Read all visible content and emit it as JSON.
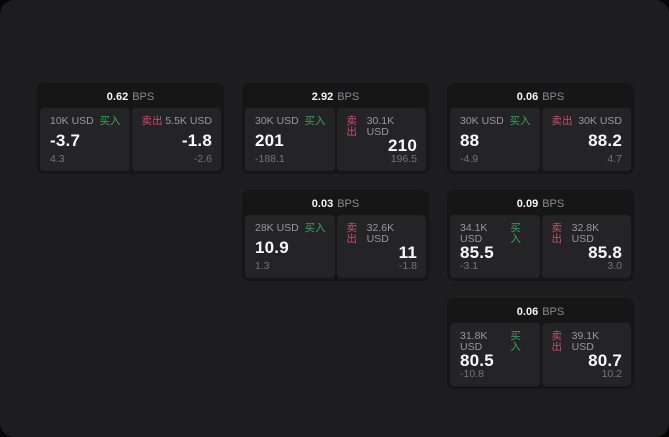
{
  "labels": {
    "bps_unit": "BPS",
    "buy": "买入",
    "sell": "卖出"
  },
  "colors": {
    "background": "#060606",
    "surface": "#1d1d1f",
    "card": "#161617",
    "panel": "#242427",
    "buy_green": "#3fa05f",
    "sell_red": "#c4506b",
    "primary_text": "#fafafa",
    "muted_text": "#98989d"
  },
  "cards": [
    {
      "bps": "0.62",
      "buy": {
        "notional": "10K USD",
        "price": "-3.7",
        "change": "4.3"
      },
      "sell": {
        "notional": "5.5K USD",
        "price": "-1.8",
        "change": "-2.6"
      }
    },
    {
      "bps": "2.92",
      "buy": {
        "notional": "30K USD",
        "price": "201",
        "change": "-188.1"
      },
      "sell": {
        "notional": "30.1K USD",
        "price": "210",
        "change": "196.5"
      }
    },
    {
      "bps": "0.06",
      "buy": {
        "notional": "30K USD",
        "price": "88",
        "change": "-4.9"
      },
      "sell": {
        "notional": "30K USD",
        "price": "88.2",
        "change": "4.7"
      }
    },
    {
      "bps": "0.03",
      "buy": {
        "notional": "28K USD",
        "price": "10.9",
        "change": "1.3"
      },
      "sell": {
        "notional": "32.6K USD",
        "price": "11",
        "change": "-1.8"
      }
    },
    {
      "bps": "0.09",
      "buy": {
        "notional": "34.1K USD",
        "price": "85.5",
        "change": "-3.1"
      },
      "sell": {
        "notional": "32.8K USD",
        "price": "85.8",
        "change": "3.0"
      }
    },
    {
      "bps": "0.06",
      "buy": {
        "notional": "31.8K USD",
        "price": "80.5",
        "change": "-10.8"
      },
      "sell": {
        "notional": "39.1K USD",
        "price": "80.7",
        "change": "10.2"
      }
    }
  ]
}
